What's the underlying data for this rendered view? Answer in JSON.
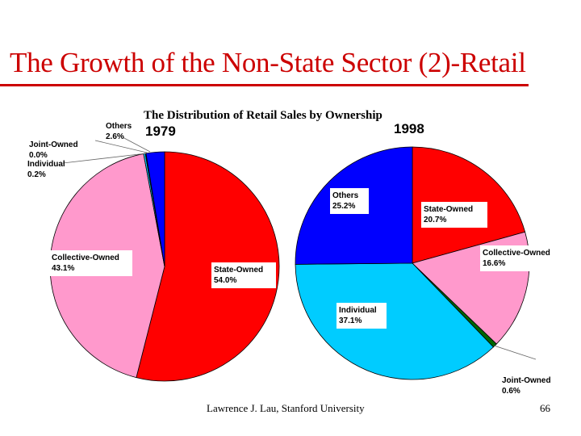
{
  "slide": {
    "title": "The Growth of the Non-State Sector (2)-Retail",
    "footer": "Lawrence J. Lau, Stanford University",
    "page_number": "66"
  },
  "colors": {
    "state_owned": "#ff0000",
    "collective_owned": "#ff99cc",
    "individual": "#00ccff",
    "joint_owned": "#006600",
    "others": "#0000ff",
    "title_accent": "#cc0000"
  },
  "chart_data": {
    "type": "pie",
    "title": "The Distribution of Retail Sales by Ownership",
    "charts": [
      {
        "label": "1979",
        "slices": [
          {
            "name": "State-Owned",
            "value": 54.0,
            "value_label": "54.0%",
            "color_key": "state_owned"
          },
          {
            "name": "Collective-Owned",
            "value": 43.1,
            "value_label": "43.1%",
            "color_key": "collective_owned"
          },
          {
            "name": "Individual",
            "value": 0.2,
            "value_label": "0.2%",
            "color_key": "individual"
          },
          {
            "name": "Joint-Owned",
            "value": 0.0,
            "value_label": "0.0%",
            "color_key": "joint_owned"
          },
          {
            "name": "Others",
            "value": 2.6,
            "value_label": "2.6%",
            "color_key": "others"
          }
        ]
      },
      {
        "label": "1998",
        "slices": [
          {
            "name": "State-Owned",
            "value": 20.7,
            "value_label": "20.7%",
            "color_key": "state_owned"
          },
          {
            "name": "Collective-Owned",
            "value": 16.6,
            "value_label": "16.6%",
            "color_key": "collective_owned"
          },
          {
            "name": "Joint-Owned",
            "value": 0.6,
            "value_label": "0.6%",
            "color_key": "joint_owned"
          },
          {
            "name": "Individual",
            "value": 37.1,
            "value_label": "37.1%",
            "color_key": "individual"
          },
          {
            "name": "Others",
            "value": 25.2,
            "value_label": "25.2%",
            "color_key": "others"
          }
        ]
      }
    ]
  }
}
